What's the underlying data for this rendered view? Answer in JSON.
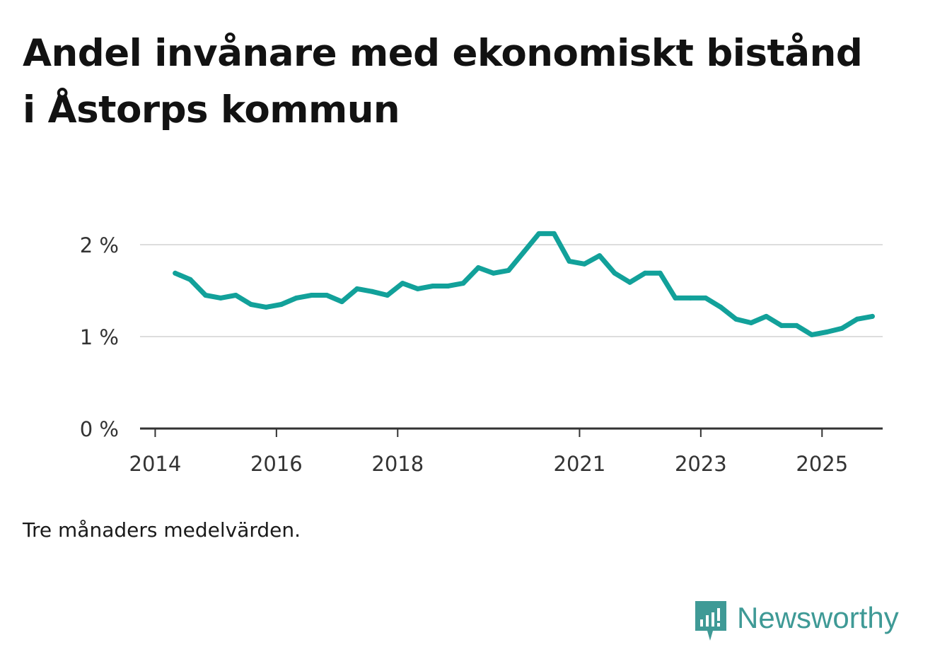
{
  "title": "Andel invånare med ekonomiskt bistånd i Åstorps kommun",
  "note": "Tre månaders medelvärden.",
  "brand": {
    "name": "Newsworthy",
    "icon": "newsworthy-logo-icon",
    "color": "#3f9a96"
  },
  "colors": {
    "line": "#12a19a",
    "grid": "#dddddd",
    "axis": "#333333",
    "tick_text": "#333333"
  },
  "chart_data": {
    "type": "line",
    "title": "Andel invånare med ekonomiskt bistånd i Åstorps kommun",
    "xlabel": "",
    "ylabel": "",
    "ylim": [
      0,
      2
    ],
    "yticks": [
      {
        "value": 0,
        "label": "0 %"
      },
      {
        "value": 1,
        "label": "1 %"
      },
      {
        "value": 2,
        "label": "2 %"
      }
    ],
    "xlim": [
      2013.75,
      2026.0
    ],
    "xticks": [
      {
        "value": 2014,
        "label": "2014"
      },
      {
        "value": 2016,
        "label": "2016"
      },
      {
        "value": 2018,
        "label": "2018"
      },
      {
        "value": 2021,
        "label": "2021"
      },
      {
        "value": 2023,
        "label": "2023"
      },
      {
        "value": 2025,
        "label": "2025"
      }
    ],
    "grid": true,
    "series": [
      {
        "name": "Andel invånare med ekonomiskt bistånd",
        "x": [
          2014.33,
          2014.58,
          2014.83,
          2015.08,
          2015.33,
          2015.58,
          2015.83,
          2016.08,
          2016.33,
          2016.58,
          2016.83,
          2017.08,
          2017.33,
          2017.58,
          2017.83,
          2018.08,
          2018.33,
          2018.58,
          2018.83,
          2019.08,
          2019.33,
          2019.58,
          2019.83,
          2020.08,
          2020.33,
          2020.58,
          2020.83,
          2021.08,
          2021.33,
          2021.58,
          2021.83,
          2022.08,
          2022.33,
          2022.58,
          2022.83,
          2023.08,
          2023.33,
          2023.58,
          2023.83,
          2024.08,
          2024.33,
          2024.58,
          2024.83,
          2025.08,
          2025.33,
          2025.58,
          2025.83
        ],
        "values": [
          1.69,
          1.62,
          1.45,
          1.42,
          1.45,
          1.35,
          1.32,
          1.35,
          1.42,
          1.45,
          1.45,
          1.38,
          1.52,
          1.49,
          1.45,
          1.58,
          1.52,
          1.55,
          1.55,
          1.58,
          1.75,
          1.69,
          1.72,
          1.92,
          2.12,
          2.12,
          1.82,
          1.79,
          1.88,
          1.69,
          1.59,
          1.69,
          1.69,
          1.42,
          1.42,
          1.42,
          1.32,
          1.19,
          1.15,
          1.22,
          1.12,
          1.12,
          1.02,
          1.05,
          1.09,
          1.19,
          1.22
        ]
      }
    ]
  }
}
